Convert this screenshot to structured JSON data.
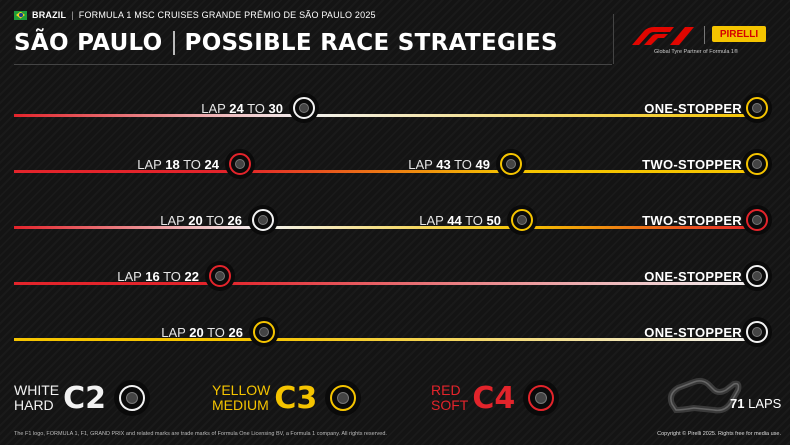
{
  "header": {
    "country": "BRAZIL",
    "event": "FORMULA 1 MSC CRUISES GRANDE PRÊMIO DE SÃO PAULO 2025",
    "title_left": "SÃO PAULO",
    "title_right": "POSSIBLE RACE STRATEGIES",
    "partner_text": "Global Tyre Partner of Formula 1®",
    "pirelli_logo": "PIRELLI"
  },
  "colors": {
    "hard": "#f2f2f2",
    "medium": "#f5c400",
    "soft": "#e3242b"
  },
  "strategies": [
    {
      "stops": [
        {
          "lap_word": "LAP",
          "from": "24",
          "to_word": "TO",
          "to": "30"
        }
      ],
      "label": "ONE-STOPPER",
      "tyres": [
        "soft",
        "hard",
        "medium"
      ]
    },
    {
      "stops": [
        {
          "lap_word": "LAP",
          "from": "18",
          "to_word": "TO",
          "to": "24"
        },
        {
          "lap_word": "LAP",
          "from": "43",
          "to_word": "TO",
          "to": "49"
        }
      ],
      "label": "TWO-STOPPER",
      "tyres": [
        "soft",
        "soft",
        "medium",
        "medium"
      ]
    },
    {
      "stops": [
        {
          "lap_word": "LAP",
          "from": "20",
          "to_word": "TO",
          "to": "26"
        },
        {
          "lap_word": "LAP",
          "from": "44",
          "to_word": "TO",
          "to": "50"
        }
      ],
      "label": "TWO-STOPPER",
      "tyres": [
        "soft",
        "hard",
        "medium",
        "soft"
      ]
    },
    {
      "stops": [
        {
          "lap_word": "LAP",
          "from": "16",
          "to_word": "TO",
          "to": "22"
        }
      ],
      "label": "ONE-STOPPER",
      "tyres": [
        "soft",
        "soft",
        "hard"
      ]
    },
    {
      "stops": [
        {
          "lap_word": "LAP",
          "from": "20",
          "to_word": "TO",
          "to": "26"
        }
      ],
      "label": "ONE-STOPPER",
      "tyres": [
        "medium",
        "medium",
        "hard"
      ]
    }
  ],
  "legend": [
    {
      "line1": "WHITE",
      "line2": "HARD",
      "code": "C2",
      "compound": "hard"
    },
    {
      "line1": "YELLOW",
      "line2": "MEDIUM",
      "code": "C3",
      "compound": "medium"
    },
    {
      "line1": "RED",
      "line2": "SOFT",
      "code": "C4",
      "compound": "soft"
    }
  ],
  "laps": {
    "number": "71",
    "word": "LAPS"
  },
  "footer": {
    "left": "The F1 logo, FORMULA 1, F1, GRAND PRIX and related marks are trade marks of Formula One Licensing BV, a Formula 1 company. All rights reserved.",
    "right": "Copyright © Pirelli 2025. Rights free for media use."
  }
}
